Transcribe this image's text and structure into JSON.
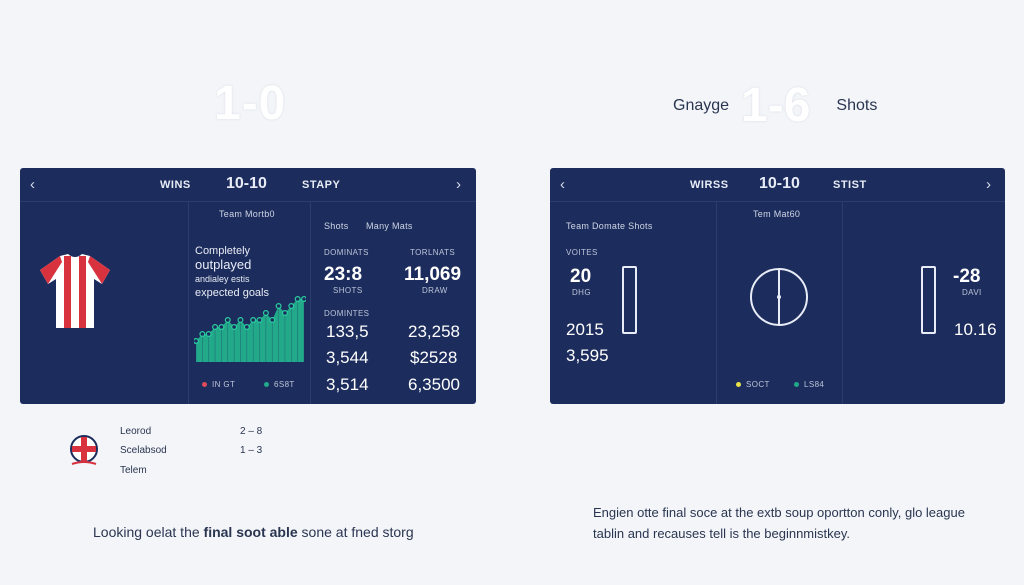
{
  "top": {
    "score_left": "1-0",
    "word_left": "Gnayge",
    "score_right": "1-6",
    "word_right": "Shots"
  },
  "left_panel": {
    "header_left": "WINS",
    "header_score": "10-10",
    "header_right": "STAPY",
    "match_label": "Team Mortb0",
    "headline": [
      "Completely",
      "outplayed",
      "andialey estis",
      "expected goals"
    ],
    "legend": [
      "IN GT",
      "6S8T"
    ],
    "legend_colors": [
      "#e04b5b",
      "#22a98a"
    ],
    "stats_header": [
      "Shots",
      "Many Mats"
    ],
    "col_heads": [
      "DOMINATS",
      "TORLNATS"
    ],
    "row1": [
      "23:8",
      "11,069"
    ],
    "row1_sub": [
      "SHOTS",
      "DRAW"
    ],
    "section2": "DOMINTES",
    "row2": [
      "133,5",
      "23,258"
    ],
    "row3": [
      "3,544",
      "$2528"
    ],
    "row4": [
      "3,514",
      "6,3500"
    ]
  },
  "chart_data": {
    "type": "area",
    "x": [
      1,
      2,
      3,
      4,
      5,
      6,
      7,
      8,
      9,
      10,
      11,
      12,
      13,
      14,
      15,
      16,
      17,
      18
    ],
    "values": [
      3,
      4,
      4,
      5,
      5,
      6,
      5,
      6,
      5,
      6,
      6,
      7,
      6,
      8,
      7,
      8,
      9,
      9
    ],
    "colors": {
      "fill": "#22a98a",
      "marker": "#2ad0a0"
    }
  },
  "right_panel": {
    "header_left": "WIRSS",
    "header_score": "10-10",
    "header_right": "STIST",
    "col1_title": "Team Domate Shots",
    "col1_label": "VOITES",
    "col1_big": "20",
    "col1_sub": "DHG",
    "col1_vals": [
      "2015",
      "3,595"
    ],
    "col2_title": "Tem Mat60",
    "legend": [
      "SOCT",
      "LS84"
    ],
    "legend_colors": [
      "#e8e24a",
      "#22a98a"
    ],
    "col3_big": "-28",
    "col3_sub": "DAVI",
    "col3_val": "10.16"
  },
  "legend_below": {
    "rows": [
      {
        "label": "Leorod",
        "value": "2 – 8"
      },
      {
        "label": "Scelabsod",
        "value": "1 – 3"
      },
      {
        "label": "Telem",
        "value": ""
      }
    ]
  },
  "caption_left": {
    "pre": "Looking oelat the ",
    "bold": "final soot able",
    "post": " sone at fned storg"
  },
  "note_right": "Engien otte final soce at the extb soup oportton conly, glo league tablin and recauses tell is the beginnmistkey."
}
